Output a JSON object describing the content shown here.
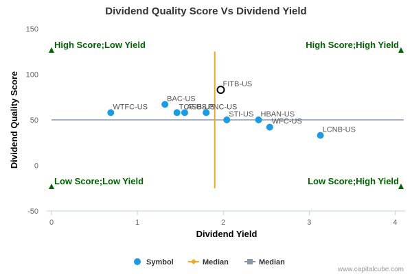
{
  "chart_data": {
    "type": "scatter",
    "title": "Dividend Quality Score Vs Dividend Yield",
    "xlabel": "Dividend Yield",
    "ylabel": "Dividend Quality Score",
    "xlim": [
      0,
      4.1
    ],
    "ylim": [
      -50,
      150
    ],
    "x_ticks": [
      0,
      1,
      2,
      3,
      4
    ],
    "y_ticks": [
      -50,
      0,
      50,
      100,
      150
    ],
    "grid": false,
    "median_x": 1.9,
    "median_x_range": [
      -25,
      125
    ],
    "median_y": 50,
    "points": [
      {
        "label": "WTFC-US",
        "x": 0.69,
        "y": 58
      },
      {
        "label": "BAC-US",
        "x": 1.32,
        "y": 67
      },
      {
        "label": "TCF-US",
        "x": 1.46,
        "y": 58
      },
      {
        "label": "ASB-US",
        "x": 1.55,
        "y": 58
      },
      {
        "label": "PNC-US",
        "x": 1.8,
        "y": 58
      },
      {
        "label": "STI-US",
        "x": 2.04,
        "y": 50
      },
      {
        "label": "HBAN-US",
        "x": 2.41,
        "y": 50
      },
      {
        "label": "WFC-US",
        "x": 2.54,
        "y": 42
      },
      {
        "label": "LCNB-US",
        "x": 3.13,
        "y": 33
      }
    ],
    "highlight": {
      "label": "FITB-US",
      "x": 1.97,
      "y": 83
    },
    "quadrant_labels": {
      "top_left": "High Score;Low Yield",
      "top_right": "High Score;High Yield",
      "bottom_left": "Low Score;Low Yield",
      "bottom_right": "Low Score;High Yield"
    },
    "legend": [
      {
        "name": "Symbol",
        "marker": "circle",
        "color": "#1a9be6"
      },
      {
        "name": "Median",
        "marker": "diamond",
        "color": "#f5a623"
      },
      {
        "name": "Median",
        "marker": "square",
        "color": "#8a96a8"
      }
    ],
    "legend_position": "bottom-center",
    "colors": {
      "point": "#1a9be6",
      "median_x_line": "#f5a623",
      "median_y_line": "#8a96a8",
      "quadrant": "#006400"
    }
  },
  "credit": "www.capitalcube.com"
}
